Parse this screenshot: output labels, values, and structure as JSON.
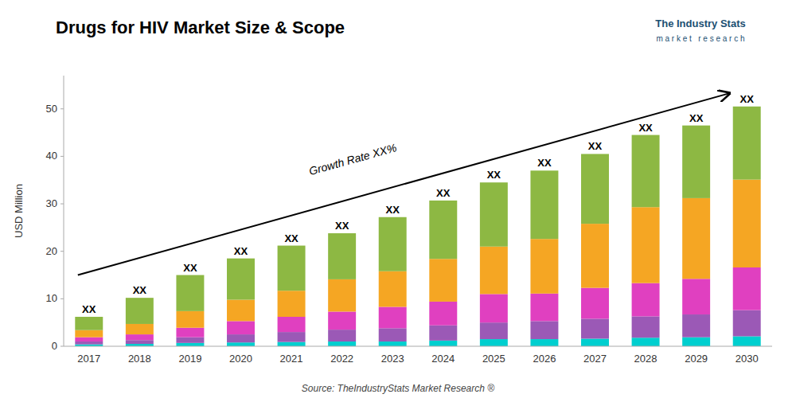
{
  "chart_data": {
    "type": "bar",
    "stacked": true,
    "grid": false,
    "title": "Drugs for HIV Market Size & Scope",
    "y_label": "USD Million",
    "source": "Source: TheIndustryStats Market Research ®",
    "annotations": [
      "Growth Rate XX%",
      "The Industry Stats",
      "m a r k e t   r e s e a r c h"
    ],
    "categories": [
      "2017",
      "2018",
      "2019",
      "2020",
      "2021",
      "2022",
      "2023",
      "2024",
      "2025",
      "2026",
      "2027",
      "2028",
      "2029",
      "2030"
    ],
    "series": [
      {
        "color": "#00CFCF",
        "values": [
          0.4,
          0.5,
          0.7,
          0.8,
          0.9,
          1.0,
          1.0,
          1.2,
          1.5,
          1.5,
          1.6,
          1.8,
          1.9,
          2.1
        ]
      },
      {
        "color": "#9B59B6",
        "values": [
          0.6,
          0.8,
          1.2,
          1.7,
          2.1,
          2.5,
          2.8,
          3.2,
          3.5,
          3.8,
          4.2,
          4.5,
          4.8,
          5.5
        ]
      },
      {
        "color": "#E040C0",
        "values": [
          0.9,
          1.2,
          2.0,
          2.8,
          3.2,
          3.8,
          4.5,
          5.0,
          6.0,
          5.8,
          6.5,
          7.0,
          7.5,
          9.0
        ]
      },
      {
        "color": "#F5A623",
        "values": [
          1.5,
          2.2,
          3.5,
          4.5,
          5.5,
          6.8,
          7.5,
          9.0,
          10.0,
          11.5,
          13.5,
          16.0,
          17.0,
          18.5
        ]
      },
      {
        "color": "#8DB843",
        "values": [
          2.8,
          5.5,
          7.6,
          8.7,
          9.5,
          9.7,
          11.4,
          12.3,
          13.5,
          14.4,
          14.7,
          15.2,
          15.3,
          15.4
        ]
      }
    ],
    "totals": [
      6.2,
      10.2,
      15.0,
      18.5,
      21.2,
      23.8,
      27.2,
      30.7,
      34.5,
      37.0,
      40.5,
      44.5,
      46.5,
      50.5
    ],
    "total_labels": [
      "XX",
      "XX",
      "XX",
      "XX",
      "XX",
      "XX",
      "XX",
      "XX",
      "XX",
      "XX",
      "XX",
      "XX",
      "XX",
      "XX"
    ],
    "ylim": [
      0,
      57
    ],
    "yticks": [
      0,
      10,
      20,
      30,
      40,
      50
    ]
  }
}
